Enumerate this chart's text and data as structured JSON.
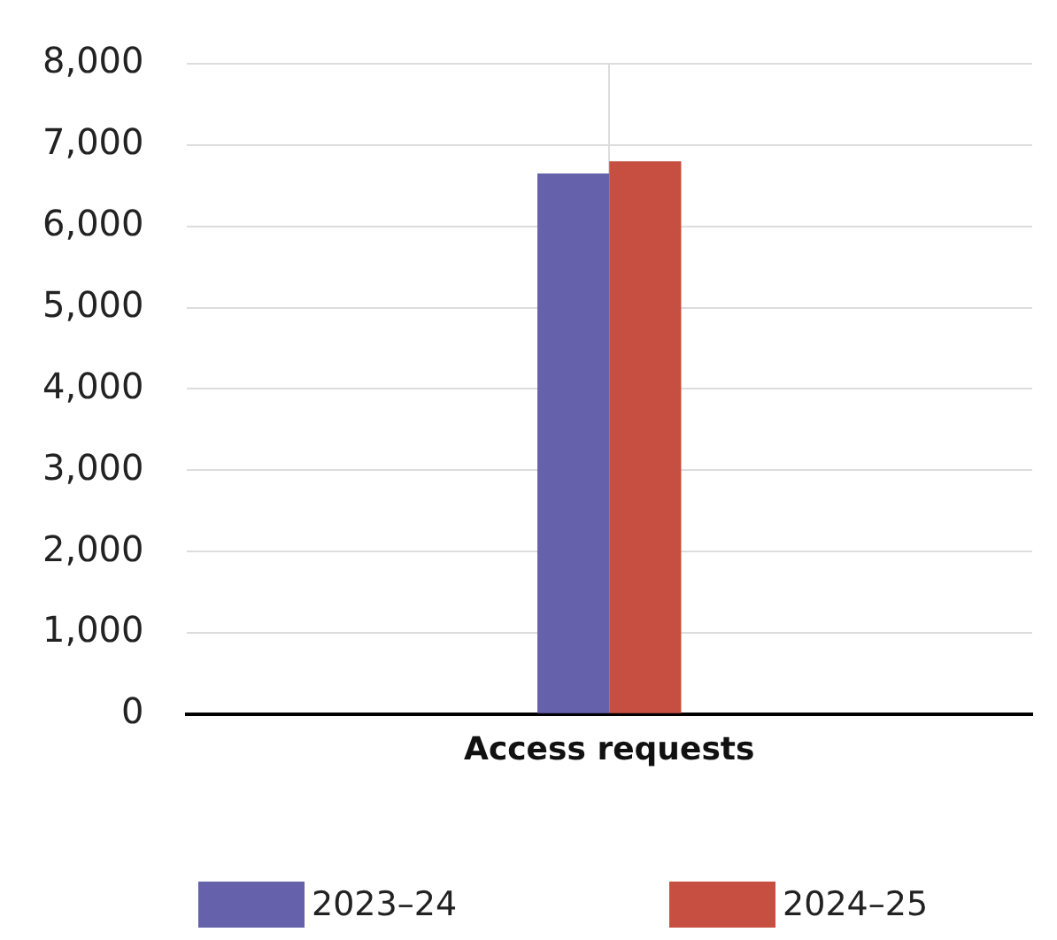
{
  "chart_data": {
    "type": "bar",
    "categories": [
      "Access requests"
    ],
    "series": [
      {
        "name": "2023–24",
        "color": "#6561ab",
        "values": [
          6650
        ]
      },
      {
        "name": "2024–25",
        "color": "#c74f41",
        "values": [
          6800
        ]
      }
    ],
    "ylim": [
      0,
      8000
    ],
    "yticks": [
      {
        "value": 0,
        "label": "0"
      },
      {
        "value": 1000,
        "label": "1,000"
      },
      {
        "value": 2000,
        "label": "2,000"
      },
      {
        "value": 3000,
        "label": "3,000"
      },
      {
        "value": 4000,
        "label": "4,000"
      },
      {
        "value": 5000,
        "label": "5,000"
      },
      {
        "value": 6000,
        "label": "6,000"
      },
      {
        "value": 7000,
        "label": "7,000"
      },
      {
        "value": 8000,
        "label": "8,000"
      }
    ],
    "grid": true,
    "legend": "bottom"
  }
}
